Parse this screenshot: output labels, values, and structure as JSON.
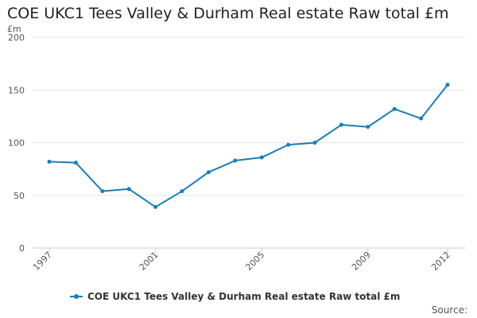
{
  "chart_data": {
    "type": "line",
    "title": "COE UKC1 Tees Valley & Durham Real estate Raw total £m",
    "ylabel": "£m",
    "xlabel": "",
    "ylim": [
      0,
      200
    ],
    "yticks": [
      0,
      50,
      100,
      150,
      200
    ],
    "xticks": [
      "1997",
      "2001",
      "2005",
      "2009",
      "2012"
    ],
    "grid": true,
    "legend_position": "bottom",
    "series": [
      {
        "name": "COE UKC1 Tees Valley & Durham Real estate Raw total £m",
        "color": "#1a7db8",
        "x": [
          1997,
          1998,
          1999,
          2000,
          2001,
          2002,
          2003,
          2004,
          2005,
          2006,
          2007,
          2008,
          2009,
          2010,
          2011,
          2012
        ],
        "values": [
          82,
          81,
          54,
          56,
          39,
          54,
          72,
          83,
          86,
          98,
          100,
          117,
          115,
          132,
          123,
          155
        ]
      }
    ]
  },
  "footer": {
    "source_label": "Source:"
  }
}
